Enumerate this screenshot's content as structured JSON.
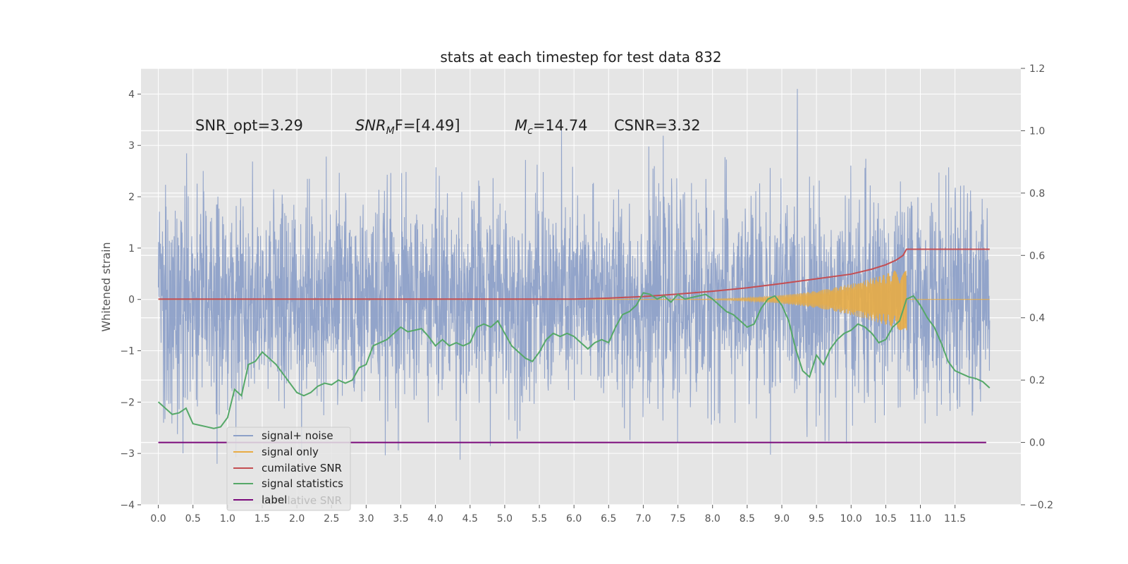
{
  "chart_data": {
    "type": "line",
    "title": "stats at each timestep for test data 832",
    "ylabel": "Whitened strain",
    "xlabel": "",
    "xlim": [
      -0.25,
      12.45
    ],
    "ylim": [
      -4,
      4.5
    ],
    "y2lim": [
      -0.2,
      1.2
    ],
    "x_ticks": [
      "0.0",
      "0.5",
      "1.0",
      "1.5",
      "2.0",
      "2.5",
      "3.0",
      "3.5",
      "4.0",
      "4.5",
      "5.0",
      "5.5",
      "6.0",
      "6.5",
      "7.0",
      "7.5",
      "8.0",
      "8.5",
      "9.0",
      "9.5",
      "10.0",
      "10.5",
      "11.0",
      "11.5"
    ],
    "y_ticks": [
      "−4",
      "−3",
      "−2",
      "−1",
      "0",
      "1",
      "2",
      "3",
      "4"
    ],
    "y2_ticks": [
      "−0.2",
      "0.0",
      "0.2",
      "0.4",
      "0.6",
      "0.8",
      "1.0",
      "1.2"
    ],
    "grid": true,
    "legend": {
      "placement": "lower-left",
      "entries": [
        "signal+ noise",
        "signal only",
        "cumilative SNR",
        "signal statistics",
        "label"
      ],
      "ghost_text": "cumilative SNR"
    },
    "annotations": {
      "snr_opt": "SNR_opt=3.29",
      "snr_mf_main": "SNR",
      "snr_mf_sub": "M",
      "snr_mf_rest": "F=[4.49]",
      "mc_main": "M",
      "mc_sub": "c",
      "mc_rest": "=14.74",
      "csnr": "CSNR=3.32"
    },
    "colors": {
      "signal_noise": "#8da0c8",
      "signal_only": "#e8ac45",
      "cumulative_snr": "#c44e52",
      "signal_statistics": "#55a868",
      "label": "#7b0a7b",
      "axes_bg": "#e5e5e5",
      "grid": "#ffffff"
    },
    "series": [
      {
        "name": "signal+ noise",
        "axis": "left",
        "style": "noise",
        "x_range": [
          0,
          12.0
        ],
        "sigma": 1.0,
        "peak_high": 4.1,
        "peak_low": -3.6
      },
      {
        "name": "signal only",
        "axis": "left",
        "style": "chirp",
        "x_range": [
          7.0,
          10.8
        ],
        "peak": 0.65,
        "trough": -0.6
      },
      {
        "name": "cumilative SNR",
        "axis": "right",
        "x": [
          0,
          6.0,
          6.5,
          7.0,
          7.5,
          8.0,
          8.5,
          9.0,
          9.5,
          10.0,
          10.3,
          10.5,
          10.65,
          10.75,
          10.8,
          11.0,
          12.0
        ],
        "y": [
          0.46,
          0.46,
          0.463,
          0.468,
          0.476,
          0.485,
          0.496,
          0.51,
          0.525,
          0.54,
          0.556,
          0.57,
          0.585,
          0.6,
          0.62,
          0.62,
          0.62
        ]
      },
      {
        "name": "signal statistics",
        "axis": "right",
        "x": [
          0.0,
          0.1,
          0.2,
          0.3,
          0.4,
          0.5,
          0.6,
          0.7,
          0.8,
          0.9,
          1.0,
          1.1,
          1.2,
          1.3,
          1.4,
          1.5,
          1.6,
          1.7,
          1.8,
          1.9,
          2.0,
          2.1,
          2.2,
          2.3,
          2.4,
          2.5,
          2.6,
          2.7,
          2.8,
          2.9,
          3.0,
          3.1,
          3.2,
          3.3,
          3.4,
          3.5,
          3.6,
          3.7,
          3.8,
          3.9,
          4.0,
          4.1,
          4.2,
          4.3,
          4.4,
          4.5,
          4.6,
          4.7,
          4.8,
          4.9,
          5.0,
          5.1,
          5.2,
          5.3,
          5.4,
          5.5,
          5.6,
          5.7,
          5.8,
          5.9,
          6.0,
          6.1,
          6.2,
          6.3,
          6.4,
          6.5,
          6.6,
          6.7,
          6.8,
          6.9,
          7.0,
          7.1,
          7.2,
          7.3,
          7.4,
          7.5,
          7.6,
          7.7,
          7.8,
          7.9,
          8.0,
          8.1,
          8.2,
          8.3,
          8.4,
          8.5,
          8.6,
          8.7,
          8.8,
          8.9,
          9.0,
          9.1,
          9.2,
          9.3,
          9.4,
          9.5,
          9.6,
          9.7,
          9.8,
          9.9,
          10.0,
          10.1,
          10.2,
          10.3,
          10.4,
          10.5,
          10.6,
          10.7,
          10.8,
          10.9,
          11.0,
          11.1,
          11.2,
          11.3,
          11.4,
          11.5,
          11.6,
          11.7,
          11.8,
          11.9,
          12.0
        ],
        "y": [
          0.13,
          0.11,
          0.09,
          0.095,
          0.11,
          0.06,
          0.055,
          0.05,
          0.045,
          0.05,
          0.08,
          0.17,
          0.15,
          0.25,
          0.26,
          0.29,
          0.27,
          0.25,
          0.22,
          0.19,
          0.16,
          0.15,
          0.16,
          0.18,
          0.19,
          0.185,
          0.2,
          0.19,
          0.2,
          0.24,
          0.25,
          0.31,
          0.32,
          0.33,
          0.35,
          0.37,
          0.355,
          0.36,
          0.365,
          0.34,
          0.31,
          0.33,
          0.31,
          0.32,
          0.31,
          0.32,
          0.37,
          0.38,
          0.37,
          0.39,
          0.35,
          0.31,
          0.29,
          0.27,
          0.26,
          0.29,
          0.33,
          0.35,
          0.34,
          0.35,
          0.34,
          0.32,
          0.3,
          0.32,
          0.33,
          0.32,
          0.37,
          0.41,
          0.42,
          0.44,
          0.48,
          0.475,
          0.46,
          0.47,
          0.45,
          0.475,
          0.46,
          0.465,
          0.47,
          0.475,
          0.46,
          0.44,
          0.42,
          0.41,
          0.39,
          0.37,
          0.38,
          0.43,
          0.46,
          0.47,
          0.44,
          0.39,
          0.3,
          0.23,
          0.21,
          0.28,
          0.25,
          0.3,
          0.33,
          0.35,
          0.36,
          0.38,
          0.37,
          0.35,
          0.32,
          0.33,
          0.37,
          0.39,
          0.46,
          0.47,
          0.44,
          0.4,
          0.37,
          0.32,
          0.26,
          0.23,
          0.22,
          0.21,
          0.205,
          0.195,
          0.175
        ]
      },
      {
        "name": "label",
        "axis": "right",
        "x": [
          0,
          11.95
        ],
        "y": [
          0,
          0
        ]
      }
    ]
  }
}
